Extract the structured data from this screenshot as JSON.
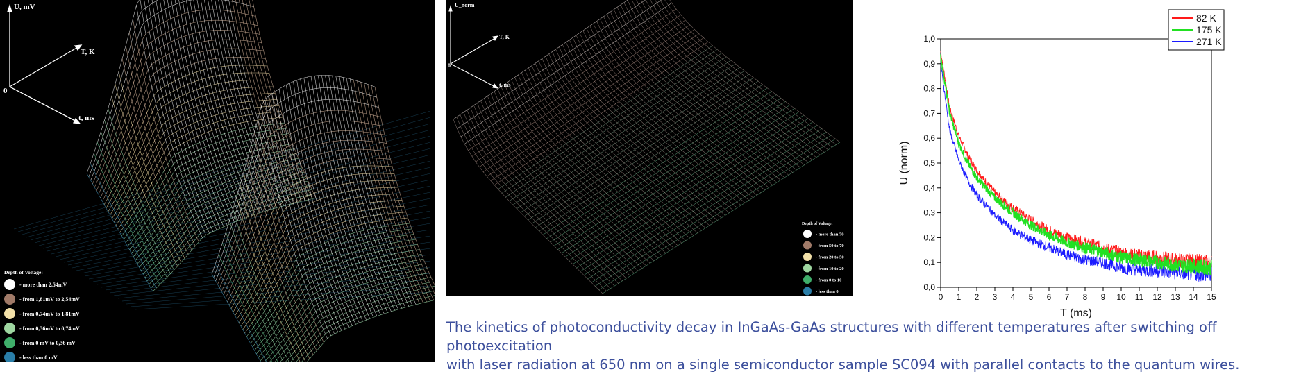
{
  "left_plot": {
    "axis_labels": {
      "u": "U, mV",
      "t_temp": "T, K",
      "t_time": "t, ms",
      "origin": "0"
    },
    "legend": {
      "title": "Depth of Voltage:",
      "items": [
        {
          "label": "- more than 2,54mV",
          "color": "#ffffff"
        },
        {
          "label": "- from 1,81mV to 2,54mV",
          "color": "#a07a68"
        },
        {
          "label": "- from 0,74mV to 1,81mV",
          "color": "#f2e0a8"
        },
        {
          "label": "- from 0,36mV to 0,74mV",
          "color": "#9ed6a0"
        },
        {
          "label": "- from 0 mV to 0,36 mV",
          "color": "#3fae6a"
        },
        {
          "label": "- less than 0 mV",
          "color": "#2a7ea8"
        }
      ]
    }
  },
  "middle_plot": {
    "axis_labels": {
      "u": "U_norm",
      "t_temp": "T, K",
      "t_time": "t, ms",
      "origin": "0"
    },
    "legend": {
      "title": "Depth of Voltage:",
      "items": [
        {
          "label": "- more than 70",
          "color": "#ffffff"
        },
        {
          "label": "- from 50 to 70",
          "color": "#a07a68"
        },
        {
          "label": "- from 20 to 50",
          "color": "#f2e0a8"
        },
        {
          "label": "- from 10 to 20",
          "color": "#9ed6a0"
        },
        {
          "label": "- from 0 to 10",
          "color": "#3fae6a"
        },
        {
          "label": "- less than 0",
          "color": "#2a7ea8"
        }
      ]
    }
  },
  "chart_data": {
    "type": "line",
    "title": "",
    "xlabel": "T (ms)",
    "ylabel": "U (norm)",
    "xlim": [
      0,
      15
    ],
    "ylim": [
      0,
      1.0
    ],
    "x_ticks": [
      "0",
      "1",
      "2",
      "3",
      "4",
      "5",
      "6",
      "7",
      "8",
      "9",
      "10",
      "11",
      "12",
      "13",
      "14",
      "15"
    ],
    "y_ticks": [
      "0,0",
      "0,1",
      "0,2",
      "0,3",
      "0,4",
      "0,5",
      "0,6",
      "0,7",
      "0,8",
      "0,9",
      "1,0"
    ],
    "legend_position": "top-right",
    "x": [
      0,
      0.5,
      1,
      1.5,
      2,
      3,
      4,
      5,
      6,
      7,
      8,
      9,
      10,
      11,
      12,
      13,
      14,
      15
    ],
    "series": [
      {
        "name": "82 K",
        "color": "#ff1a1a",
        "values": [
          0.95,
          0.72,
          0.61,
          0.53,
          0.47,
          0.38,
          0.32,
          0.27,
          0.23,
          0.2,
          0.18,
          0.16,
          0.14,
          0.13,
          0.12,
          0.11,
          0.105,
          0.1
        ]
      },
      {
        "name": "175 K",
        "color": "#22e022",
        "values": [
          0.93,
          0.7,
          0.58,
          0.5,
          0.44,
          0.36,
          0.3,
          0.25,
          0.21,
          0.18,
          0.16,
          0.14,
          0.12,
          0.11,
          0.1,
          0.09,
          0.085,
          0.08
        ]
      },
      {
        "name": "271 K",
        "color": "#1a1aff",
        "values": [
          0.9,
          0.63,
          0.51,
          0.43,
          0.37,
          0.29,
          0.23,
          0.19,
          0.16,
          0.13,
          0.11,
          0.1,
          0.08,
          0.07,
          0.065,
          0.06,
          0.055,
          0.05
        ]
      }
    ]
  },
  "caption": {
    "line1": "The kinetics of photoconductivity decay in InGaAs-GaAs structures with different temperatures after switching off photoexcitation",
    "line2": "with laser radiation at 650 nm on a single semiconductor sample SC094 with parallel contacts to the quantum wires."
  }
}
